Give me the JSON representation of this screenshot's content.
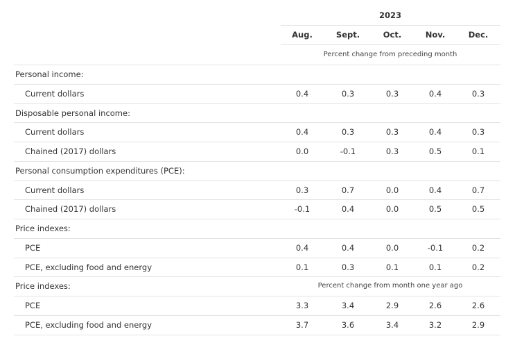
{
  "table": {
    "year": "2023",
    "columns": [
      "Aug.",
      "Sept.",
      "Oct.",
      "Nov.",
      "Dec."
    ],
    "subheader": "Percent change from preceding month",
    "rows": [
      {
        "label": "Personal income:"
      },
      {
        "label": "Current dollars",
        "values": [
          "0.4",
          "0.3",
          "0.3",
          "0.4",
          "0.3"
        ]
      },
      {
        "label": "Disposable personal income:"
      },
      {
        "label": "Current dollars",
        "values": [
          "0.4",
          "0.3",
          "0.3",
          "0.4",
          "0.3"
        ]
      },
      {
        "label": "Chained (2017) dollars",
        "values": [
          "0.0",
          "-0.1",
          "0.3",
          "0.5",
          "0.1"
        ]
      },
      {
        "label": "Personal consumption expenditures (PCE):"
      },
      {
        "label": "Current dollars",
        "values": [
          "0.3",
          "0.7",
          "0.0",
          "0.4",
          "0.7"
        ]
      },
      {
        "label": "Chained (2017) dollars",
        "values": [
          "-0.1",
          "0.4",
          "0.0",
          "0.5",
          "0.5"
        ]
      },
      {
        "label": "Price indexes:"
      },
      {
        "label": "PCE",
        "values": [
          "0.4",
          "0.4",
          "0.0",
          "-0.1",
          "0.2"
        ]
      },
      {
        "label": "PCE, excluding food and energy",
        "values": [
          "0.1",
          "0.3",
          "0.1",
          "0.1",
          "0.2"
        ]
      },
      {
        "label": "Price indexes:",
        "note": "Percent change from month one year ago"
      },
      {
        "label": "PCE",
        "values": [
          "3.3",
          "3.4",
          "2.9",
          "2.6",
          "2.6"
        ]
      },
      {
        "label": "PCE, excluding food and energy",
        "values": [
          "3.7",
          "3.6",
          "3.4",
          "3.2",
          "2.9"
        ]
      }
    ]
  }
}
